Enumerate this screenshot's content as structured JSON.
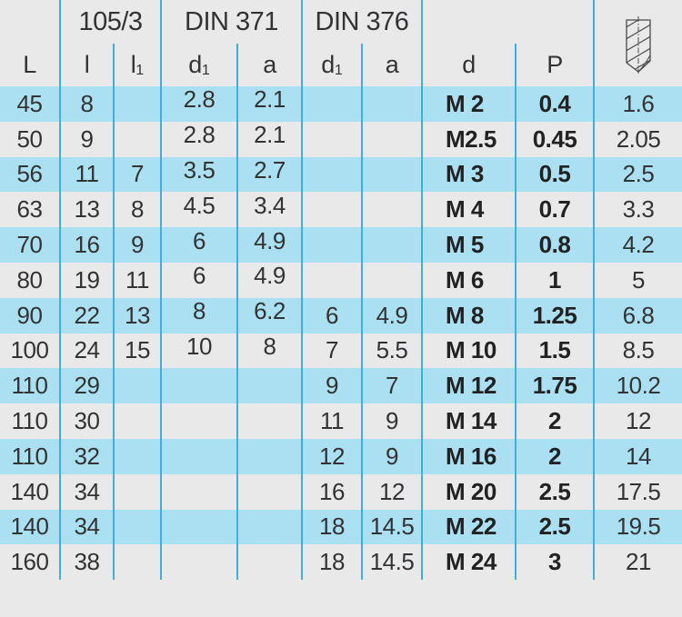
{
  "colors": {
    "row_blue": "#abdff2",
    "row_gray": "#e9e9e9",
    "grid_line": "#3fafe2",
    "text": "#333333"
  },
  "header": {
    "corner": "",
    "group_105": "105/3",
    "group_din371": "DIN 371",
    "group_din376": "DIN 376",
    "group_dp": "",
    "col_L": "L",
    "col_l": "l",
    "col_l1": {
      "base": "l",
      "sub": "1"
    },
    "col_d1_371": {
      "base": "d",
      "sub": "1"
    },
    "col_a_371": "a",
    "col_d1_376": {
      "base": "d",
      "sub": "1"
    },
    "col_a_376": "a",
    "col_d": "d",
    "col_P": "P",
    "icon": "core-hole-drill-icon"
  },
  "column_keys": [
    "L",
    "l",
    "l1",
    "d1-din371",
    "a-din371",
    "d1-din376",
    "a-din376",
    "d",
    "P",
    "core-hole-diameter"
  ],
  "rows": [
    [
      "45",
      "8",
      "",
      "2.8",
      "2.1",
      "",
      "",
      "M 2",
      "0.4",
      "1.6"
    ],
    [
      "50",
      "9",
      "",
      "2.8",
      "2.1",
      "",
      "",
      "M2.5",
      "0.45",
      "2.05"
    ],
    [
      "56",
      "11",
      "7",
      "3.5",
      "2.7",
      "",
      "",
      "M 3",
      "0.5",
      "2.5"
    ],
    [
      "63",
      "13",
      "8",
      "4.5",
      "3.4",
      "",
      "",
      "M 4",
      "0.7",
      "3.3"
    ],
    [
      "70",
      "16",
      "9",
      "6",
      "4.9",
      "",
      "",
      "M 5",
      "0.8",
      "4.2"
    ],
    [
      "80",
      "19",
      "11",
      "6",
      "4.9",
      "",
      "",
      "M 6",
      "1",
      "5"
    ],
    [
      "90",
      "22",
      "13",
      "8",
      "6.2",
      "6",
      "4.9",
      "M 8",
      "1.25",
      "6.8"
    ],
    [
      "100",
      "24",
      "15",
      "10",
      "8",
      "7",
      "5.5",
      "M 10",
      "1.5",
      "8.5"
    ],
    [
      "110",
      "29",
      "",
      "",
      "",
      "9",
      "7",
      "M 12",
      "1.75",
      "10.2"
    ],
    [
      "110",
      "30",
      "",
      "",
      "",
      "11",
      "9",
      "M 14",
      "2",
      "12"
    ],
    [
      "110",
      "32",
      "",
      "",
      "",
      "12",
      "9",
      "M 16",
      "2",
      "14"
    ],
    [
      "140",
      "34",
      "",
      "",
      "",
      "16",
      "12",
      "M 20",
      "2.5",
      "17.5"
    ],
    [
      "140",
      "34",
      "",
      "",
      "",
      "18",
      "14.5",
      "M 22",
      "2.5",
      "19.5"
    ],
    [
      "160",
      "38",
      "",
      "",
      "",
      "18",
      "14.5",
      "M 24",
      "3",
      "21"
    ]
  ]
}
